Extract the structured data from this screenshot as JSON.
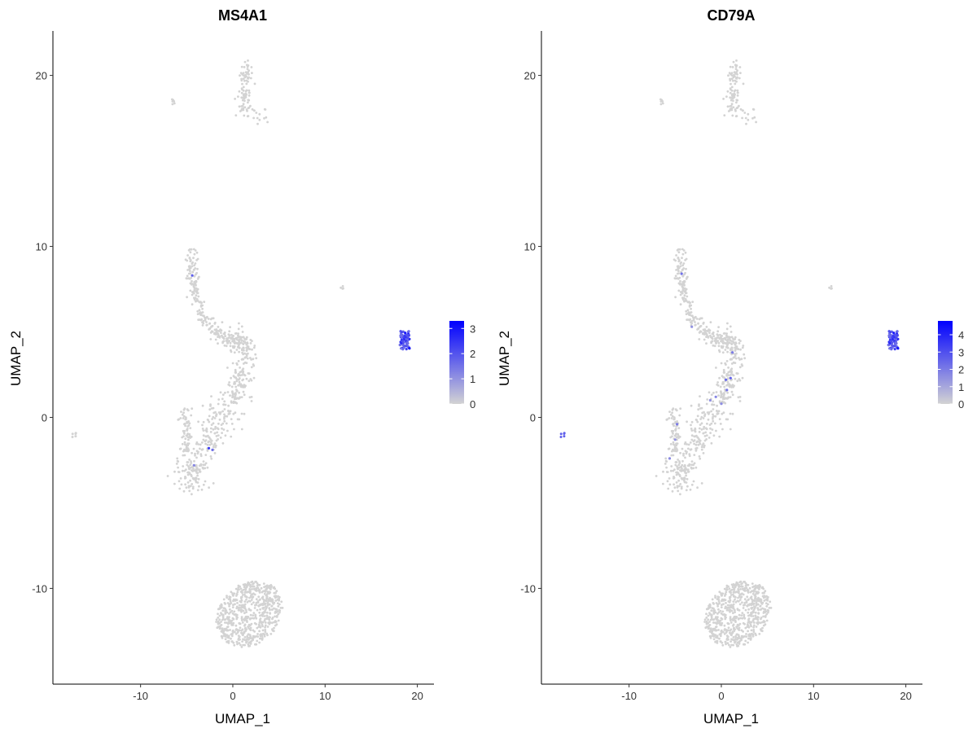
{
  "chart_data": [
    {
      "type": "scatter",
      "title": "MS4A1",
      "xlabel": "UMAP_1",
      "ylabel": "UMAP_2",
      "xlim": [
        -19.5,
        21.8
      ],
      "ylim": [
        -15.6,
        22.6
      ],
      "xticks": [
        -10,
        0,
        10,
        20
      ],
      "yticks": [
        -10,
        0,
        10,
        20
      ],
      "grid": false,
      "legend_position": "right",
      "color_scale": {
        "low": "#d3d3d3",
        "high": "#0000ff",
        "min": 0,
        "max": 3.3,
        "ticks": [
          0,
          1,
          2,
          3
        ]
      },
      "clusters": [
        {
          "shape": "upper-strip",
          "values": 0
        },
        {
          "shape": "small-patch",
          "x": -6.6,
          "y": 18.4,
          "values": 0
        },
        {
          "shape": "arc",
          "values": 0
        },
        {
          "shape": "small-patch",
          "x": 11.8,
          "y": 7.5,
          "values": 0
        },
        {
          "shape": "small-patch",
          "x": -17.2,
          "y": -1.0,
          "values": 0
        },
        {
          "shape": "blob",
          "x": 1.8,
          "y": -11.6,
          "values": 0
        },
        {
          "shape": "expressing-cluster",
          "x": 18.6,
          "y": 4.5,
          "values": "2-3"
        }
      ],
      "highlight_points": [
        {
          "x": -4.4,
          "y": 8.3,
          "v": 1.8
        },
        {
          "x": -2.6,
          "y": -1.8,
          "v": 2.4
        },
        {
          "x": -2.2,
          "y": -1.9,
          "v": 1.6
        },
        {
          "x": -4.2,
          "y": -2.8,
          "v": 1.2
        }
      ]
    },
    {
      "type": "scatter",
      "title": "CD79A",
      "xlabel": "UMAP_1",
      "ylabel": "UMAP_2",
      "xlim": [
        -19.5,
        21.8
      ],
      "ylim": [
        -15.6,
        22.6
      ],
      "xticks": [
        -10,
        0,
        10,
        20
      ],
      "yticks": [
        -10,
        0,
        10,
        20
      ],
      "grid": false,
      "legend_position": "right",
      "color_scale": {
        "low": "#d3d3d3",
        "high": "#0000ff",
        "min": 0,
        "max": 4.8,
        "ticks": [
          0,
          1,
          2,
          3,
          4
        ]
      },
      "clusters": [
        {
          "shape": "upper-strip",
          "values": 0
        },
        {
          "shape": "small-patch",
          "x": -6.6,
          "y": 18.4,
          "values": 0
        },
        {
          "shape": "arc",
          "values": 0
        },
        {
          "shape": "small-patch",
          "x": 11.8,
          "y": 7.5,
          "values": 0
        },
        {
          "shape": "small-patch",
          "x": -17.2,
          "y": -1.0,
          "values": "2-3"
        },
        {
          "shape": "blob",
          "x": 1.8,
          "y": -11.6,
          "values": 0
        },
        {
          "shape": "expressing-cluster",
          "x": 18.6,
          "y": 4.5,
          "values": "2-3"
        }
      ],
      "highlight_points": [
        {
          "x": -4.3,
          "y": 8.4,
          "v": 2.2
        },
        {
          "x": -3.2,
          "y": 5.3,
          "v": 1.5
        },
        {
          "x": 1.2,
          "y": 3.8,
          "v": 2.0
        },
        {
          "x": 0.5,
          "y": 2.2,
          "v": 2.4
        },
        {
          "x": 1.0,
          "y": 2.3,
          "v": 2.6
        },
        {
          "x": 0.6,
          "y": 1.6,
          "v": 2.1
        },
        {
          "x": -0.6,
          "y": 1.2,
          "v": 1.8
        },
        {
          "x": -1.2,
          "y": 1.0,
          "v": 1.5
        },
        {
          "x": -4.8,
          "y": -0.4,
          "v": 2.0
        },
        {
          "x": -5.6,
          "y": -2.4,
          "v": 1.7
        },
        {
          "x": -5.0,
          "y": -1.3,
          "v": 1.4
        },
        {
          "x": 0.0,
          "y": 0.8,
          "v": 1.6
        }
      ]
    }
  ]
}
